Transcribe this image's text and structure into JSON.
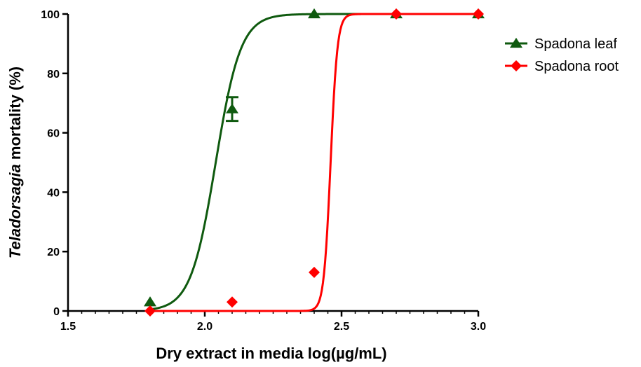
{
  "chart_data": {
    "type": "scatter",
    "xlabel": "Dry extract in media log(µg/mL)",
    "ylabel_parts": {
      "italic": "Teladorsagia",
      "rest": " mortality (%)"
    },
    "xlim": [
      1.5,
      3.0
    ],
    "ylim": [
      0,
      100
    ],
    "x_ticks": [
      "1.5",
      "2.0",
      "2.5",
      "3.0"
    ],
    "y_ticks": [
      "0",
      "20",
      "40",
      "60",
      "80",
      "100"
    ],
    "grid": false,
    "legend": "right",
    "series": [
      {
        "name": "Spadona leaf",
        "color": "#0f5a0f",
        "marker": "triangle",
        "x": [
          1.8,
          2.1,
          2.4,
          2.7,
          3.0
        ],
        "y": [
          3,
          68,
          100,
          100,
          100
        ],
        "yerr": [
          0,
          4,
          0,
          0,
          0
        ],
        "fit": {
          "ec50": 2.04,
          "hill": 9.5
        }
      },
      {
        "name": "Spadona root",
        "color": "#ff0000",
        "marker": "diamond",
        "x": [
          1.8,
          2.1,
          2.4,
          2.7,
          3.0
        ],
        "y": [
          0,
          3,
          13,
          100,
          100
        ],
        "yerr": [
          0,
          0,
          0,
          0,
          0
        ],
        "fit": {
          "ec50": 2.46,
          "hill": 35
        }
      }
    ]
  }
}
